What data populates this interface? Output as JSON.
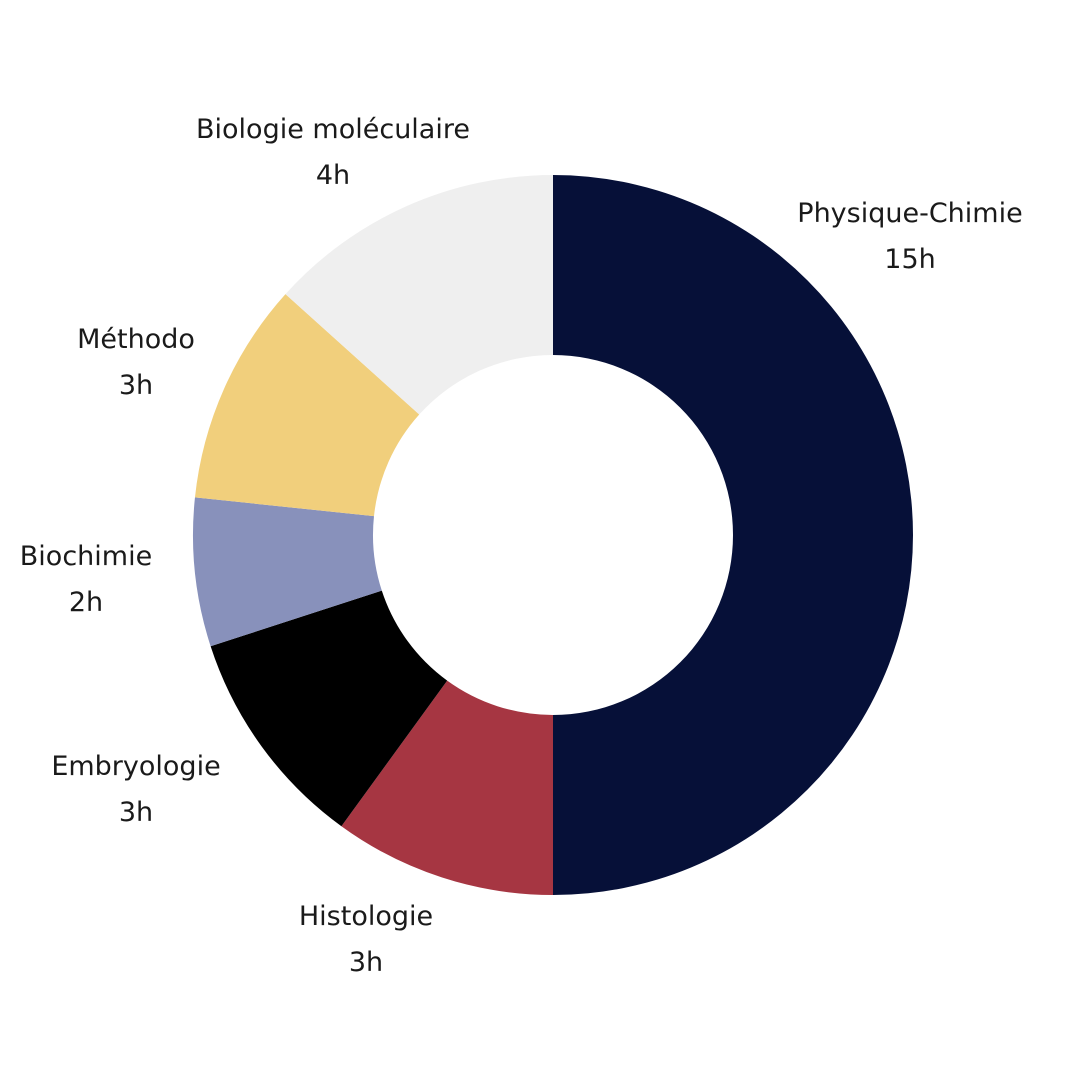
{
  "chart_data": {
    "type": "pie",
    "title": "",
    "slices": [
      {
        "label": "Physique-Chimie",
        "value": 15,
        "value_label": "15h",
        "color": "#061038"
      },
      {
        "label": "Histologie",
        "value": 3,
        "value_label": "3h",
        "color": "#a63642"
      },
      {
        "label": "Embryologie",
        "value": 3,
        "value_label": "3h",
        "color": "#000000"
      },
      {
        "label": "Biochimie",
        "value": 2,
        "value_label": "2h",
        "color": "#8891bb"
      },
      {
        "label": "Méthodo",
        "value": 3,
        "value_label": "3h",
        "color": "#f1cf7c"
      },
      {
        "label": "Biologie moléculaire",
        "value": 4,
        "value_label": "4h",
        "color": "#efefef"
      }
    ]
  }
}
